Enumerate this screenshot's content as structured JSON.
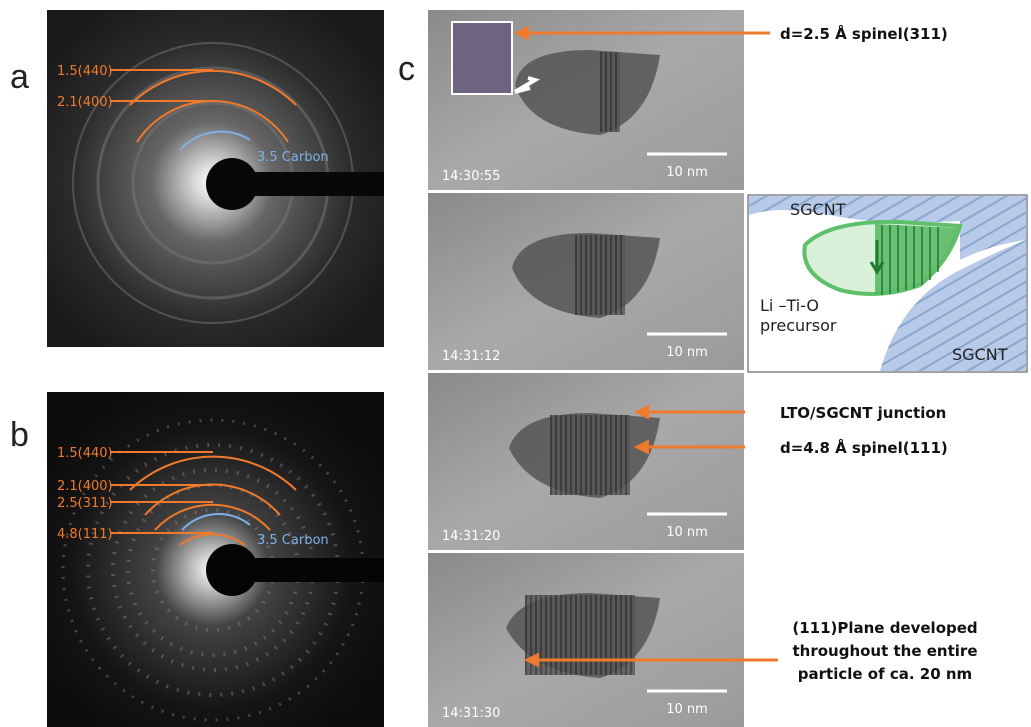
{
  "panels": {
    "a": {
      "label": "a",
      "rings": [
        "1.5(440)",
        "2.1(400)"
      ],
      "carbon": "3.5 Carbon"
    },
    "b": {
      "label": "b",
      "rings": [
        "1.5(440)",
        "2.1(400)",
        "2.5(311)",
        "4.8(111)"
      ],
      "carbon": "3.5 Carbon"
    },
    "c": {
      "label": "c",
      "frames": [
        {
          "time": "14:30:55",
          "scale": "10 nm"
        },
        {
          "time": "14:31:12",
          "scale": "10 nm"
        },
        {
          "time": "14:31:20",
          "scale": "10 nm"
        },
        {
          "time": "14:31:30",
          "scale": "10 nm"
        }
      ],
      "annotations": {
        "spinel311": "d=2.5 Å spinel(311)",
        "junction": "LTO/SGCNT junction",
        "spinel111": "d=4.8 Å spinel(111)",
        "plane": [
          "(111)Plane developed",
          "throughout the entire",
          "particle of ca. 20 nm"
        ]
      },
      "schematic": {
        "top": "SGCNT",
        "precursor": [
          "Li –Ti-O",
          "precursor"
        ],
        "bottom": "SGCNT"
      }
    }
  }
}
